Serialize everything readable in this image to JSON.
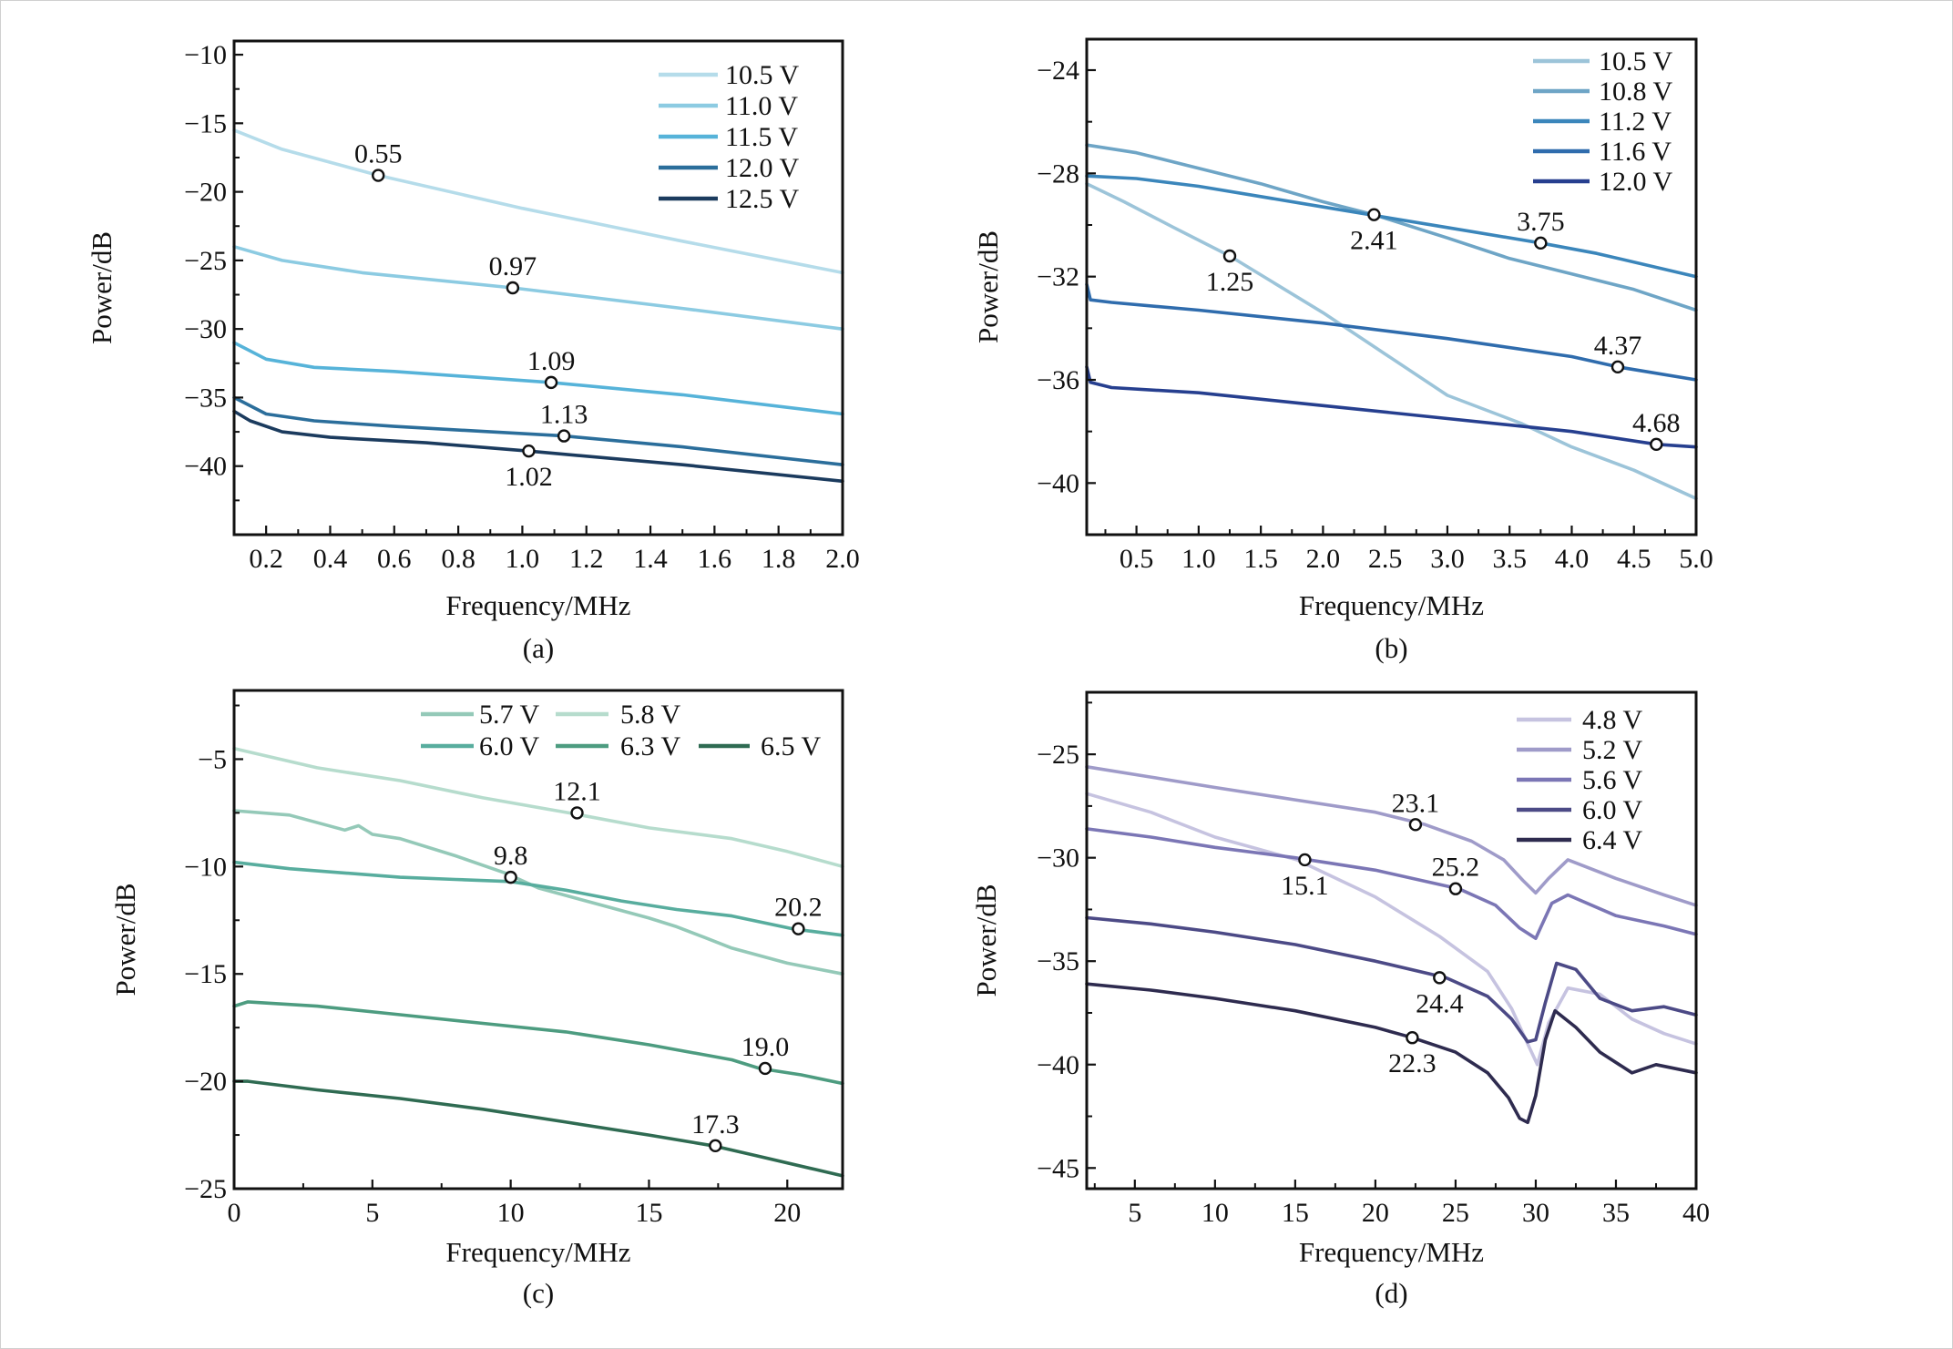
{
  "chart_data": [
    {
      "type": "line",
      "caption": "(a)",
      "xlabel": "Frequency/MHz",
      "ylabel": "Power/dB",
      "xlim": [
        0.1,
        2.0
      ],
      "ylim": [
        -45,
        -9
      ],
      "xticks": [
        0.2,
        0.4,
        0.6,
        0.8,
        1.0,
        1.2,
        1.4,
        1.6,
        1.8,
        2.0
      ],
      "xtick_labels": [
        "0.2",
        "0.4",
        "0.6",
        "0.8",
        "1.0",
        "1.2",
        "1.4",
        "1.6",
        "1.8",
        "2.0"
      ],
      "yticks": [
        -10,
        -15,
        -20,
        -25,
        -30,
        -35,
        -40
      ],
      "ytick_labels": [
        "−10",
        "−15",
        "−20",
        "−25",
        "−30",
        "−35",
        "−40"
      ],
      "legend": {
        "position": "top-right",
        "columns": 1
      },
      "grid": false,
      "series": [
        {
          "name": "10.5 V",
          "color": "#b5dcea",
          "x": [
            0.1,
            0.25,
            0.55,
            1.0,
            1.5,
            2.0
          ],
          "y": [
            -15.5,
            -16.9,
            -18.8,
            -21.2,
            -23.6,
            -25.9
          ]
        },
        {
          "name": "11.0 V",
          "color": "#8ccbe2",
          "x": [
            0.1,
            0.25,
            0.5,
            0.97,
            1.5,
            2.0
          ],
          "y": [
            -24.0,
            -25.0,
            -25.9,
            -27.0,
            -28.5,
            -30.0
          ]
        },
        {
          "name": "11.5 V",
          "color": "#56b3d9",
          "x": [
            0.1,
            0.2,
            0.35,
            0.6,
            1.09,
            1.5,
            2.0
          ],
          "y": [
            -31.0,
            -32.2,
            -32.8,
            -33.1,
            -33.9,
            -34.8,
            -36.2
          ]
        },
        {
          "name": "12.0 V",
          "color": "#2b6e9b",
          "x": [
            0.1,
            0.2,
            0.35,
            0.6,
            1.13,
            1.5,
            2.0
          ],
          "y": [
            -35.0,
            -36.2,
            -36.7,
            -37.1,
            -37.8,
            -38.6,
            -39.9
          ]
        },
        {
          "name": "12.5 V",
          "color": "#1b3b5e",
          "x": [
            0.1,
            0.15,
            0.25,
            0.4,
            0.7,
            1.02,
            1.5,
            2.0
          ],
          "y": [
            -36.0,
            -36.7,
            -37.5,
            -37.9,
            -38.3,
            -38.9,
            -39.9,
            -41.1
          ]
        }
      ],
      "annotations": [
        {
          "label": "0.55",
          "x": 0.55,
          "y": -18.8,
          "label_side": "above"
        },
        {
          "label": "0.97",
          "x": 0.97,
          "y": -27.0,
          "label_side": "above"
        },
        {
          "label": "1.09",
          "x": 1.09,
          "y": -33.9,
          "label_side": "above"
        },
        {
          "label": "1.13",
          "x": 1.13,
          "y": -37.8,
          "label_side": "above"
        },
        {
          "label": "1.02",
          "x": 1.02,
          "y": -38.9,
          "label_side": "below"
        }
      ]
    },
    {
      "type": "line",
      "caption": "(b)",
      "xlabel": "Frequency/MHz",
      "ylabel": "Power/dB",
      "xlim": [
        0.1,
        5.0
      ],
      "ylim": [
        -42,
        -22.8
      ],
      "xticks": [
        0.5,
        1.0,
        1.5,
        2.0,
        2.5,
        3.0,
        3.5,
        4.0,
        4.5,
        5.0
      ],
      "xtick_labels": [
        "0.5",
        "1.0",
        "1.5",
        "2.0",
        "2.5",
        "3.0",
        "3.5",
        "4.0",
        "4.5",
        "5.0"
      ],
      "yticks": [
        -24,
        -28,
        -32,
        -36,
        -40
      ],
      "ytick_labels": [
        "−24",
        "−28",
        "−32",
        "−36",
        "−40"
      ],
      "legend": {
        "position": "top-right",
        "columns": 1
      },
      "grid": false,
      "series": [
        {
          "name": "10.5 V",
          "color": "#9cc4d9",
          "x": [
            0.1,
            0.4,
            0.8,
            1.25,
            2.0,
            2.5,
            3.0,
            3.6,
            4.0,
            4.5,
            5.0
          ],
          "y": [
            -28.4,
            -29.1,
            -30.1,
            -31.2,
            -33.4,
            -35.0,
            -36.6,
            -37.7,
            -38.6,
            -39.5,
            -40.6
          ]
        },
        {
          "name": "10.8 V",
          "color": "#6ea5c6",
          "x": [
            0.1,
            0.5,
            1.0,
            1.5,
            2.0,
            2.41,
            3.0,
            3.5,
            4.0,
            4.5,
            5.0
          ],
          "y": [
            -26.9,
            -27.2,
            -27.8,
            -28.4,
            -29.1,
            -29.6,
            -30.5,
            -31.3,
            -31.9,
            -32.5,
            -33.3
          ]
        },
        {
          "name": "11.2 V",
          "color": "#3b86bb",
          "x": [
            0.1,
            0.5,
            1.0,
            1.5,
            2.0,
            2.5,
            3.0,
            3.75,
            4.2,
            5.0
          ],
          "y": [
            -28.1,
            -28.2,
            -28.5,
            -28.9,
            -29.3,
            -29.7,
            -30.1,
            -30.7,
            -31.1,
            -32.0
          ]
        },
        {
          "name": "11.6 V",
          "color": "#2f6cad",
          "x": [
            0.1,
            0.13,
            0.3,
            1.0,
            2.0,
            3.0,
            4.0,
            4.37,
            5.0
          ],
          "y": [
            -32.3,
            -32.9,
            -33.0,
            -33.3,
            -33.8,
            -34.4,
            -35.1,
            -35.5,
            -36.0
          ]
        },
        {
          "name": "12.0 V",
          "color": "#263f8f",
          "x": [
            0.1,
            0.13,
            0.3,
            1.0,
            2.0,
            3.0,
            4.0,
            4.68,
            5.0
          ],
          "y": [
            -35.5,
            -36.1,
            -36.3,
            -36.5,
            -37.0,
            -37.5,
            -38.0,
            -38.5,
            -38.6
          ]
        }
      ],
      "annotations": [
        {
          "label": "1.25",
          "x": 1.25,
          "y": -31.2,
          "label_side": "below"
        },
        {
          "label": "2.41",
          "x": 2.41,
          "y": -29.6,
          "label_side": "below"
        },
        {
          "label": "3.75",
          "x": 3.75,
          "y": -30.7,
          "label_side": "above"
        },
        {
          "label": "4.37",
          "x": 4.37,
          "y": -35.5,
          "label_side": "above"
        },
        {
          "label": "4.68",
          "x": 4.68,
          "y": -38.5,
          "label_side": "above"
        }
      ]
    },
    {
      "type": "line",
      "caption": "(c)",
      "xlabel": "Frequency/MHz",
      "ylabel": "Power/dB",
      "xlim": [
        0,
        22
      ],
      "ylim": [
        -25,
        -1.8
      ],
      "xticks": [
        0,
        5,
        10,
        15,
        20
      ],
      "xtick_labels": [
        "0",
        "5",
        "10",
        "15",
        "20"
      ],
      "yticks": [
        -5,
        -10,
        -15,
        -20,
        -25
      ],
      "ytick_labels": [
        "−5",
        "−10",
        "−15",
        "−20",
        "−25"
      ],
      "legend": {
        "position": "top",
        "columns": 3
      },
      "grid": false,
      "series": [
        {
          "name": "5.7 V",
          "color": "#94c9b8",
          "x": [
            0,
            2,
            4,
            4.5,
            5,
            6,
            8,
            9.8,
            11,
            13,
            15,
            16,
            17,
            18,
            20,
            22
          ],
          "y": [
            -7.4,
            -7.6,
            -8.3,
            -8.1,
            -8.5,
            -8.7,
            -9.5,
            -10.3,
            -11.0,
            -11.7,
            -12.4,
            -12.8,
            -13.3,
            -13.8,
            -14.5,
            -15.0
          ]
        },
        {
          "name": "5.8 V",
          "color": "#b6dccd",
          "x": [
            0,
            3,
            6,
            9,
            12.1,
            15,
            18,
            20,
            22
          ],
          "y": [
            -4.5,
            -5.4,
            -6.0,
            -6.8,
            -7.5,
            -8.2,
            -8.7,
            -9.3,
            -10.0
          ]
        },
        {
          "name": "6.0 V",
          "color": "#58ad9e",
          "x": [
            0,
            2,
            4,
            6,
            8,
            10,
            12,
            14,
            16,
            18,
            20.2,
            22
          ],
          "y": [
            -9.8,
            -10.1,
            -10.3,
            -10.5,
            -10.6,
            -10.7,
            -11.1,
            -11.6,
            -12.0,
            -12.3,
            -12.9,
            -13.2
          ]
        },
        {
          "name": "6.3 V",
          "color": "#4d9c80",
          "x": [
            0,
            0.5,
            3,
            6,
            9,
            12,
            15,
            18,
            19.0,
            20.5,
            22
          ],
          "y": [
            -16.5,
            -16.3,
            -16.5,
            -16.9,
            -17.3,
            -17.7,
            -18.3,
            -19.0,
            -19.4,
            -19.7,
            -20.1
          ]
        },
        {
          "name": "6.5 V",
          "color": "#2f6b52",
          "x": [
            0,
            0.5,
            3,
            6,
            9,
            12,
            15,
            17.3,
            19,
            21,
            22
          ],
          "y": [
            -20.0,
            -20.0,
            -20.4,
            -20.8,
            -21.3,
            -21.9,
            -22.5,
            -23.0,
            -23.5,
            -24.1,
            -24.4
          ]
        }
      ],
      "annotations": [
        {
          "label": "9.8",
          "x": 10.0,
          "y": -10.5,
          "label_side": "above"
        },
        {
          "label": "12.1",
          "x": 12.4,
          "y": -7.5,
          "label_side": "above"
        },
        {
          "label": "20.2",
          "x": 20.4,
          "y": -12.9,
          "label_side": "above"
        },
        {
          "label": "19.0",
          "x": 19.2,
          "y": -19.4,
          "label_side": "above"
        },
        {
          "label": "17.3",
          "x": 17.4,
          "y": -23.0,
          "label_side": "above"
        }
      ]
    },
    {
      "type": "line",
      "caption": "(d)",
      "xlabel": "Frequency/MHz",
      "ylabel": "Power/dB",
      "xlim": [
        2,
        40
      ],
      "ylim": [
        -46,
        -22
      ],
      "xticks": [
        5,
        10,
        15,
        20,
        25,
        30,
        35,
        40
      ],
      "xtick_labels": [
        "5",
        "10",
        "15",
        "20",
        "25",
        "30",
        "35",
        "40"
      ],
      "yticks": [
        -25,
        -30,
        -35,
        -40,
        -45
      ],
      "ytick_labels": [
        "−25",
        "−30",
        "−35",
        "−40",
        "−45"
      ],
      "legend": {
        "position": "top-right",
        "columns": 1
      },
      "grid": false,
      "series": [
        {
          "name": "4.8 V",
          "color": "#c6c3e0",
          "x": [
            2,
            6,
            10,
            15.1,
            20,
            24,
            27,
            28.5,
            29.5,
            30.1,
            30.8,
            32,
            34,
            36,
            38,
            40
          ],
          "y": [
            -26.9,
            -27.8,
            -29.0,
            -30.1,
            -31.9,
            -33.8,
            -35.5,
            -37.3,
            -39.0,
            -40.0,
            -38.0,
            -36.3,
            -36.6,
            -37.8,
            -38.5,
            -39.0
          ]
        },
        {
          "name": "5.2 V",
          "color": "#9f9bc9",
          "x": [
            2,
            6,
            10,
            15,
            20,
            23.1,
            26,
            28,
            29.2,
            30.0,
            30.8,
            32,
            35,
            38,
            40
          ],
          "y": [
            -25.6,
            -26.1,
            -26.6,
            -27.2,
            -27.8,
            -28.4,
            -29.2,
            -30.1,
            -31.1,
            -31.7,
            -31.0,
            -30.1,
            -31.0,
            -31.8,
            -32.3
          ]
        },
        {
          "name": "5.6 V",
          "color": "#7b76b5",
          "x": [
            2,
            6,
            10,
            15,
            20,
            25.2,
            27.5,
            29,
            30.0,
            31,
            32,
            35,
            38,
            40
          ],
          "y": [
            -28.6,
            -29.0,
            -29.5,
            -30.0,
            -30.6,
            -31.5,
            -32.3,
            -33.4,
            -33.9,
            -32.2,
            -31.8,
            -32.8,
            -33.3,
            -33.7
          ]
        },
        {
          "name": "6.0 V",
          "color": "#4c4a86",
          "x": [
            2,
            6,
            10,
            15,
            20,
            24.4,
            27,
            28.5,
            29.5,
            30.0,
            30.6,
            31.3,
            32.5,
            34,
            36,
            38,
            40
          ],
          "y": [
            -32.9,
            -33.2,
            -33.6,
            -34.2,
            -35.0,
            -35.8,
            -36.7,
            -37.8,
            -38.9,
            -38.8,
            -37.0,
            -35.1,
            -35.4,
            -36.8,
            -37.4,
            -37.2,
            -37.6
          ]
        },
        {
          "name": "6.4 V",
          "color": "#2e2b4f",
          "x": [
            2,
            6,
            10,
            15,
            20,
            22.3,
            25,
            27,
            28.3,
            29.0,
            29.5,
            30.0,
            30.6,
            31.2,
            32.5,
            34,
            36,
            37.5,
            40
          ],
          "y": [
            -36.1,
            -36.4,
            -36.8,
            -37.4,
            -38.2,
            -38.7,
            -39.4,
            -40.4,
            -41.6,
            -42.6,
            -42.8,
            -41.5,
            -38.8,
            -37.4,
            -38.2,
            -39.4,
            -40.4,
            -40.0,
            -40.4
          ]
        }
      ],
      "annotations": [
        {
          "label": "15.1",
          "x": 15.6,
          "y": -30.1,
          "label_side": "below"
        },
        {
          "label": "23.1",
          "x": 22.5,
          "y": -28.4,
          "label_side": "above"
        },
        {
          "label": "25.2",
          "x": 25.0,
          "y": -31.5,
          "label_side": "above"
        },
        {
          "label": "24.4",
          "x": 24.0,
          "y": -35.8,
          "label_side": "below"
        },
        {
          "label": "22.3",
          "x": 22.3,
          "y": -38.7,
          "label_side": "below"
        }
      ]
    }
  ]
}
